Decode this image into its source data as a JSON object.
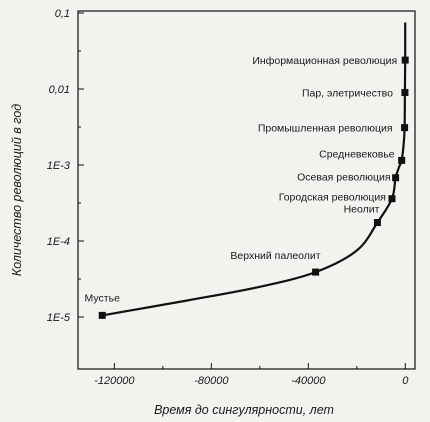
{
  "chart_data": {
    "type": "scatter",
    "title": "",
    "xlabel": "Время до сингулярности, лет",
    "ylabel": "Количество революций в год",
    "y_scale": "log",
    "xlim": [
      -135000,
      4000
    ],
    "ylim": [
      1e-05,
      0.1
    ],
    "x_ticks": [
      -120000,
      -80000,
      -40000,
      0
    ],
    "x_tick_labels": [
      "-120000",
      "-80000",
      "-40000",
      "0"
    ],
    "y_ticks": [
      1e-05,
      0.0001,
      0.001,
      0.01,
      0.1
    ],
    "y_tick_labels": [
      "1E-5",
      "1E-4",
      "1E-3",
      "0,01",
      "0,1"
    ],
    "grid": false,
    "fit_curve": true,
    "points": [
      {
        "label": "Мустье",
        "x": -125000,
        "y": 1.05e-05
      },
      {
        "label": "Верхний палеолит",
        "x": -37000,
        "y": 3.9e-05
      },
      {
        "label": "Неолит",
        "x": -11500,
        "y": 0.000175
      },
      {
        "label": "Городская революция",
        "x": -5500,
        "y": 0.00036
      },
      {
        "label": "Осевая революция",
        "x": -4000,
        "y": 0.00068
      },
      {
        "label": "Средневековье",
        "x": -1500,
        "y": 0.00115
      },
      {
        "label": "Промышленная революция",
        "x": -300,
        "y": 0.0031
      },
      {
        "label": "Пар, элетричество",
        "x": -150,
        "y": 0.009
      },
      {
        "label": "Информационная революция",
        "x": -50,
        "y": 0.024
      }
    ]
  }
}
